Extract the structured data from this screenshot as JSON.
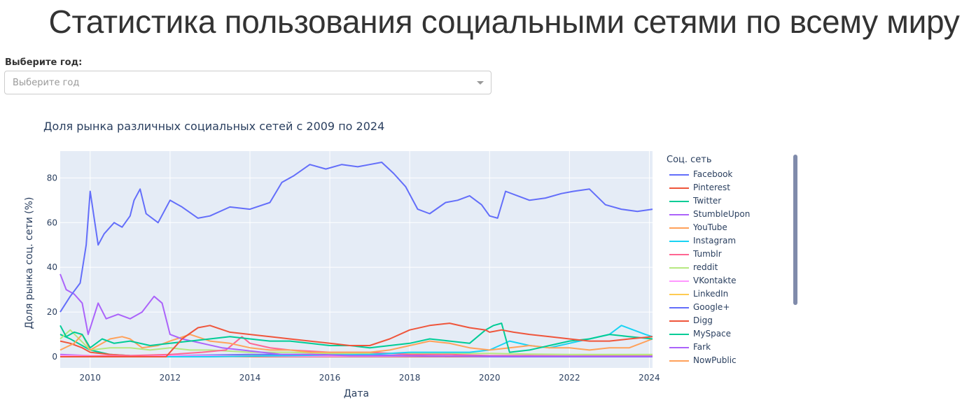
{
  "page_title": "Статистика пользования социальными сетями по всему миру",
  "year_filter": {
    "label": "Выберите год:",
    "placeholder": "Выберите год"
  },
  "chart_data": {
    "type": "line",
    "title": "Доля рынка различных социальных сетей с 2009 по 2024",
    "xlabel": "Дата",
    "ylabel": "Доля рынка соц. сети (%)",
    "legend_title": "Соц. сеть",
    "legend_position": "right",
    "xlim": [
      2009.25,
      2024.08
    ],
    "ylim": [
      -5,
      92
    ],
    "x_ticks": [
      2010,
      2012,
      2014,
      2016,
      2018,
      2020,
      2022,
      2024
    ],
    "y_ticks": [
      0,
      20,
      40,
      60,
      80
    ],
    "grid": true,
    "series": [
      {
        "name": "Facebook",
        "color": "#636efa",
        "x": [
          2009.25,
          2009.5,
          2009.75,
          2009.9,
          2010,
          2010.1,
          2010.2,
          2010.35,
          2010.6,
          2010.8,
          2011.0,
          2011.1,
          2011.25,
          2011.4,
          2011.7,
          2012.0,
          2012.3,
          2012.7,
          2013.0,
          2013.5,
          2014.0,
          2014.5,
          2014.8,
          2015.1,
          2015.5,
          2015.9,
          2016.3,
          2016.7,
          2017.0,
          2017.3,
          2017.6,
          2017.9,
          2018.2,
          2018.5,
          2018.9,
          2019.2,
          2019.5,
          2019.8,
          2020.0,
          2020.2,
          2020.4,
          2020.7,
          2021.0,
          2021.4,
          2021.8,
          2022.1,
          2022.5,
          2022.9,
          2023.3,
          2023.7,
          2024.08
        ],
        "y": [
          20,
          27,
          33,
          50,
          74,
          62,
          50,
          55,
          60,
          58,
          63,
          70,
          75,
          64,
          60,
          70,
          67,
          62,
          63,
          67,
          66,
          69,
          78,
          81,
          86,
          84,
          86,
          85,
          86,
          87,
          82,
          76,
          66,
          64,
          69,
          70,
          72,
          68,
          63,
          62,
          74,
          72,
          70,
          71,
          73,
          74,
          75,
          68,
          66,
          65,
          66
        ]
      },
      {
        "name": "Pinterest",
        "color": "#ef553b",
        "x": [
          2009.25,
          2011.9,
          2012.0,
          2012.3,
          2012.7,
          2013.0,
          2013.5,
          2014.0,
          2014.5,
          2015.0,
          2015.5,
          2016.0,
          2016.5,
          2017.0,
          2017.5,
          2018.0,
          2018.5,
          2019.0,
          2019.5,
          2019.9,
          2020.0,
          2020.3,
          2020.6,
          2021.0,
          2021.5,
          2022.0,
          2022.5,
          2023.0,
          2023.5,
          2024.08
        ],
        "y": [
          0,
          0,
          2,
          8,
          13,
          14,
          11,
          10,
          9,
          8,
          7,
          6,
          5,
          5,
          8,
          12,
          14,
          15,
          13,
          12,
          11,
          12,
          11,
          10,
          9,
          8,
          7,
          7,
          8,
          9
        ]
      },
      {
        "name": "Twitter",
        "color": "#00cc96",
        "x": [
          2009.25,
          2009.4,
          2009.6,
          2009.8,
          2010.0,
          2010.3,
          2010.6,
          2011.0,
          2011.5,
          2012.0,
          2012.5,
          2013.0,
          2013.5,
          2014.0,
          2014.5,
          2015.0,
          2015.5,
          2016.0,
          2016.5,
          2017.0,
          2017.5,
          2018.0,
          2018.5,
          2019.0,
          2019.5,
          2019.9,
          2020.1,
          2020.3,
          2020.5,
          2021.0,
          2021.5,
          2022.0,
          2022.5,
          2023.0,
          2023.5,
          2024.08
        ],
        "y": [
          14,
          9,
          11,
          10,
          4,
          8,
          6,
          7,
          5,
          6,
          7,
          8,
          9,
          8,
          7,
          7,
          6,
          5,
          5,
          4,
          5,
          6,
          8,
          7,
          6,
          12,
          14,
          15,
          2,
          3,
          5,
          7,
          8,
          10,
          9,
          8
        ]
      },
      {
        "name": "StumbleUpon",
        "color": "#ab63fa",
        "x": [
          2009.25,
          2009.4,
          2009.6,
          2009.8,
          2009.95,
          2010.2,
          2010.4,
          2010.7,
          2011.0,
          2011.3,
          2011.6,
          2011.8,
          2012.0,
          2012.3,
          2012.8,
          2013.3,
          2013.8,
          2014.3,
          2014.8,
          2015.5,
          2016.5,
          2017.5,
          2018.5,
          2019.5,
          2020.5,
          2021.5,
          2022.5,
          2023.5,
          2024.08
        ],
        "y": [
          37,
          30,
          28,
          24,
          10,
          24,
          17,
          19,
          17,
          20,
          27,
          24,
          10,
          8,
          6,
          4,
          3,
          2,
          1,
          1,
          0.5,
          0.5,
          0.3,
          0.3,
          0.2,
          0.2,
          0.2,
          0.2,
          0.2
        ]
      },
      {
        "name": "YouTube",
        "color": "#ffa15a",
        "x": [
          2009.25,
          2009.6,
          2009.8,
          2010.0,
          2010.5,
          2010.8,
          2011.0,
          2011.3,
          2011.7,
          2012.0,
          2012.5,
          2013.0,
          2013.5,
          2014.0,
          2014.5,
          2015.0,
          2015.5,
          2016.0,
          2016.5,
          2017.0,
          2017.5,
          2018.0,
          2018.5,
          2019.0,
          2019.5,
          2020.0,
          2020.5,
          2021.0,
          2021.5,
          2022.0,
          2022.5,
          2023.0,
          2023.5,
          2024.08
        ],
        "y": [
          3,
          6,
          10,
          3,
          8,
          9,
          8,
          4,
          5,
          7,
          10,
          7,
          6,
          4,
          3,
          3,
          2,
          2,
          2,
          2,
          3,
          5,
          7,
          6,
          4,
          3,
          4,
          5,
          4,
          4,
          3,
          4,
          4,
          8
        ]
      },
      {
        "name": "Instagram",
        "color": "#19d3f3",
        "x": [
          2009.25,
          2013.0,
          2014.0,
          2015.0,
          2016.0,
          2017.0,
          2017.5,
          2018.0,
          2018.5,
          2019.0,
          2019.5,
          2020.0,
          2020.5,
          2021.0,
          2021.5,
          2022.0,
          2022.5,
          2023.0,
          2023.3,
          2023.6,
          2023.9,
          2024.08
        ],
        "y": [
          0,
          0,
          0.3,
          0.5,
          0.8,
          1,
          1.5,
          2,
          2,
          2,
          2,
          3,
          7,
          5,
          4,
          6,
          8,
          10,
          14,
          12,
          10,
          9
        ]
      },
      {
        "name": "Tumblr",
        "color": "#ff6692",
        "x": [
          2009.25,
          2011.0,
          2012.0,
          2012.8,
          2013.4,
          2013.8,
          2014.0,
          2014.5,
          2015.0,
          2016.0,
          2017.0,
          2018.0,
          2019.0,
          2020.0,
          2021.0,
          2022.0,
          2023.0,
          2024.08
        ],
        "y": [
          0,
          0.5,
          1,
          2,
          3,
          9,
          6,
          4,
          3,
          2,
          2,
          1,
          1,
          0.5,
          0.5,
          0.3,
          0.3,
          0.3
        ]
      },
      {
        "name": "reddit",
        "color": "#b6e880",
        "x": [
          2009.25,
          2009.5,
          2010.0,
          2010.5,
          2011.0,
          2011.5,
          2012.0,
          2012.5,
          2013.0,
          2014.0,
          2015.0,
          2016.0,
          2017.0,
          2018.0,
          2019.0,
          2020.0,
          2021.0,
          2022.0,
          2023.0,
          2024.08
        ],
        "y": [
          8,
          12,
          3,
          4,
          4,
          3,
          4,
          3,
          3,
          2,
          2,
          1.5,
          1.5,
          1.5,
          1.5,
          1.5,
          1.2,
          1,
          1,
          1
        ]
      },
      {
        "name": "VKontakte",
        "color": "#ff97ff",
        "x": [
          2009.25,
          2012.0,
          2015.0,
          2018.0,
          2021.0,
          2024.08
        ],
        "y": [
          0.5,
          0.5,
          0.3,
          0.3,
          0.2,
          0.2
        ]
      },
      {
        "name": "LinkedIn",
        "color": "#fecb52",
        "x": [
          2009.25,
          2010.0,
          2012.0,
          2014.0,
          2016.0,
          2018.0,
          2020.0,
          2022.0,
          2024.08
        ],
        "y": [
          0.5,
          0.5,
          0.4,
          0.4,
          0.3,
          0.3,
          0.3,
          0.4,
          0.8
        ]
      },
      {
        "name": "Google+",
        "color": "#636efa",
        "x": [
          2009.25,
          2011.5,
          2012.0,
          2014.0,
          2016.0,
          2018.0,
          2019.3,
          2020.0,
          2024.08
        ],
        "y": [
          0,
          0,
          0.5,
          1,
          1,
          0.5,
          0.3,
          0,
          0
        ]
      },
      {
        "name": "Digg",
        "color": "#ef553b",
        "x": [
          2009.25,
          2009.5,
          2009.8,
          2010.0,
          2010.5,
          2011.0,
          2012.0,
          2016.0,
          2020.0,
          2024.08
        ],
        "y": [
          7,
          6,
          4,
          2,
          1,
          0.5,
          0.2,
          0.1,
          0.1,
          0.1
        ]
      },
      {
        "name": "MySpace",
        "color": "#00cc96",
        "x": [
          2009.25,
          2009.5,
          2009.8,
          2010.0,
          2010.5,
          2011.0,
          2012.0,
          2014.0,
          2018.0,
          2024.08
        ],
        "y": [
          10,
          8,
          5,
          3,
          1,
          0.5,
          0.3,
          0.2,
          0.1,
          0.1
        ]
      },
      {
        "name": "Fark",
        "color": "#ab63fa",
        "x": [
          2009.25,
          2010.0,
          2012.0,
          2016.0,
          2024.08
        ],
        "y": [
          1,
          0.5,
          0.2,
          0.1,
          0.1
        ]
      },
      {
        "name": "NowPublic",
        "color": "#ffa15a",
        "x": [
          2009.25,
          2010.0,
          2012.0,
          2016.0,
          2024.08
        ],
        "y": [
          0.5,
          0.3,
          0.1,
          0.1,
          0.1
        ]
      }
    ]
  }
}
